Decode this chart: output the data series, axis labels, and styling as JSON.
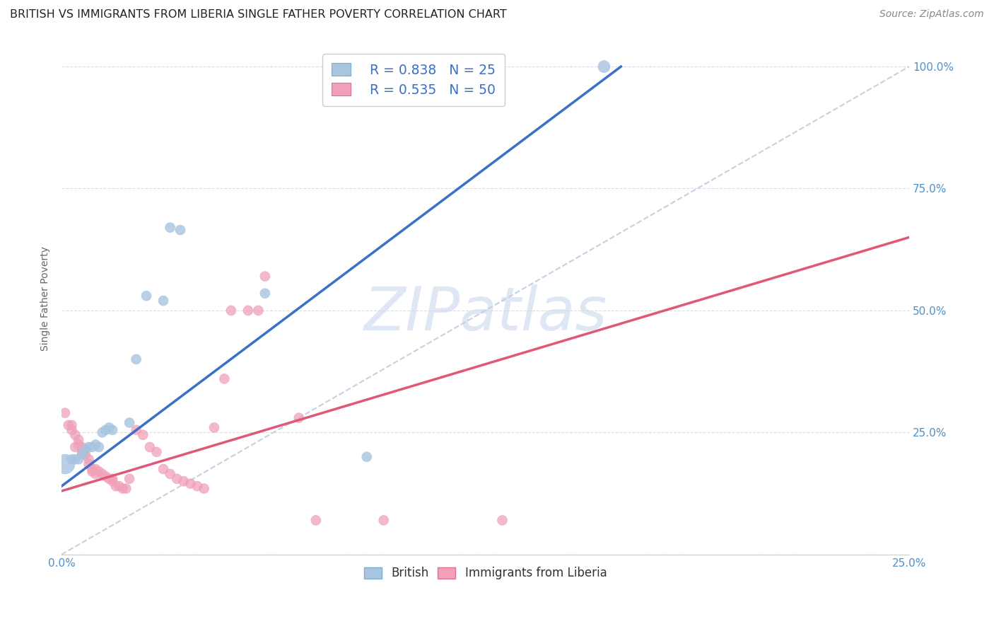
{
  "title": "BRITISH VS IMMIGRANTS FROM LIBERIA SINGLE FATHER POVERTY CORRELATION CHART",
  "source": "Source: ZipAtlas.com",
  "ylabel": "Single Father Poverty",
  "legend_blue_R": "R = 0.838",
  "legend_blue_N": "N = 25",
  "legend_pink_R": "R = 0.535",
  "legend_pink_N": "N = 50",
  "british_color": "#a8c4e0",
  "british_edge_color": "#7badd4",
  "liberia_color": "#f0a0b8",
  "liberia_edge_color": "#e07090",
  "line_blue": "#3a70c8",
  "line_pink": "#e05878",
  "diag_color": "#c8d0e0",
  "british_scatter": [
    [
      0.001,
      0.185
    ],
    [
      0.003,
      0.195
    ],
    [
      0.004,
      0.195
    ],
    [
      0.005,
      0.195
    ],
    [
      0.006,
      0.205
    ],
    [
      0.007,
      0.215
    ],
    [
      0.008,
      0.22
    ],
    [
      0.009,
      0.22
    ],
    [
      0.01,
      0.225
    ],
    [
      0.011,
      0.22
    ],
    [
      0.012,
      0.25
    ],
    [
      0.013,
      0.255
    ],
    [
      0.014,
      0.26
    ],
    [
      0.015,
      0.255
    ],
    [
      0.02,
      0.27
    ],
    [
      0.022,
      0.4
    ],
    [
      0.025,
      0.53
    ],
    [
      0.03,
      0.52
    ],
    [
      0.032,
      0.67
    ],
    [
      0.035,
      0.665
    ],
    [
      0.06,
      0.535
    ],
    [
      0.09,
      0.2
    ],
    [
      0.105,
      1.0
    ],
    [
      0.11,
      1.0
    ],
    [
      0.16,
      1.0
    ]
  ],
  "british_sizes": [
    400,
    100,
    100,
    100,
    100,
    100,
    100,
    100,
    100,
    100,
    100,
    100,
    100,
    100,
    100,
    100,
    100,
    100,
    100,
    100,
    100,
    100,
    200,
    200,
    150
  ],
  "liberia_scatter": [
    [
      0.001,
      0.29
    ],
    [
      0.002,
      0.265
    ],
    [
      0.003,
      0.265
    ],
    [
      0.003,
      0.255
    ],
    [
      0.004,
      0.245
    ],
    [
      0.004,
      0.22
    ],
    [
      0.005,
      0.235
    ],
    [
      0.005,
      0.225
    ],
    [
      0.006,
      0.22
    ],
    [
      0.006,
      0.21
    ],
    [
      0.007,
      0.215
    ],
    [
      0.007,
      0.205
    ],
    [
      0.008,
      0.195
    ],
    [
      0.008,
      0.185
    ],
    [
      0.009,
      0.175
    ],
    [
      0.009,
      0.17
    ],
    [
      0.01,
      0.175
    ],
    [
      0.01,
      0.165
    ],
    [
      0.011,
      0.17
    ],
    [
      0.012,
      0.165
    ],
    [
      0.013,
      0.16
    ],
    [
      0.014,
      0.155
    ],
    [
      0.015,
      0.155
    ],
    [
      0.015,
      0.15
    ],
    [
      0.016,
      0.14
    ],
    [
      0.017,
      0.14
    ],
    [
      0.018,
      0.135
    ],
    [
      0.019,
      0.135
    ],
    [
      0.02,
      0.155
    ],
    [
      0.022,
      0.255
    ],
    [
      0.024,
      0.245
    ],
    [
      0.026,
      0.22
    ],
    [
      0.028,
      0.21
    ],
    [
      0.03,
      0.175
    ],
    [
      0.032,
      0.165
    ],
    [
      0.034,
      0.155
    ],
    [
      0.036,
      0.15
    ],
    [
      0.038,
      0.145
    ],
    [
      0.04,
      0.14
    ],
    [
      0.042,
      0.135
    ],
    [
      0.045,
      0.26
    ],
    [
      0.048,
      0.36
    ],
    [
      0.05,
      0.5
    ],
    [
      0.055,
      0.5
    ],
    [
      0.058,
      0.5
    ],
    [
      0.06,
      0.57
    ],
    [
      0.07,
      0.28
    ],
    [
      0.075,
      0.07
    ],
    [
      0.095,
      0.07
    ],
    [
      0.13,
      0.07
    ]
  ],
  "liberia_sizes": [
    100,
    100,
    100,
    100,
    100,
    100,
    100,
    100,
    100,
    100,
    100,
    100,
    100,
    100,
    100,
    100,
    100,
    100,
    100,
    100,
    100,
    100,
    100,
    100,
    100,
    100,
    100,
    100,
    100,
    100,
    100,
    100,
    100,
    100,
    100,
    100,
    100,
    100,
    100,
    100,
    100,
    100,
    100,
    100,
    100,
    100,
    100,
    100,
    100,
    100
  ],
  "blue_line_x": [
    0.0,
    0.165
  ],
  "blue_line_y": [
    0.14,
    1.0
  ],
  "pink_line_x": [
    0.0,
    0.25
  ],
  "pink_line_y": [
    0.13,
    0.65
  ],
  "diag_line_x": [
    0.0,
    0.25
  ],
  "diag_line_y": [
    0.0,
    1.0
  ],
  "xlim": [
    0,
    0.25
  ],
  "ylim": [
    0.0,
    1.05
  ],
  "xtick_positions": [
    0.0,
    0.25
  ],
  "xtick_labels": [
    "0.0%",
    "25.0%"
  ],
  "ytick_positions": [
    0.0,
    0.25,
    0.5,
    0.75,
    1.0
  ],
  "ytick_labels_right": [
    "",
    "25.0%",
    "50.0%",
    "75.0%",
    "100.0%"
  ],
  "watermark_text": "ZIPatlas",
  "bg_color": "#ffffff",
  "grid_color": "#d8dde8",
  "title_color": "#222222",
  "axis_label_color": "#5090c8",
  "title_fontsize": 11.5,
  "source_fontsize": 10,
  "ylabel_fontsize": 10,
  "tick_fontsize": 11
}
